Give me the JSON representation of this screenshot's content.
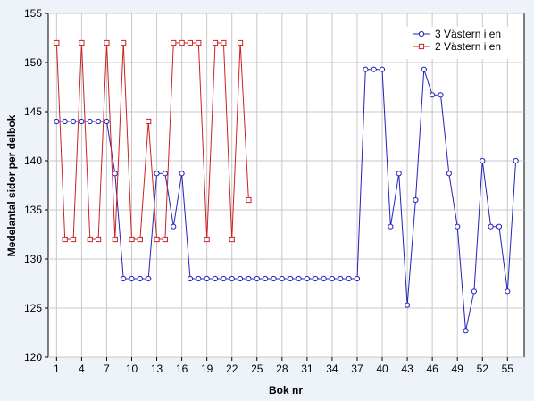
{
  "chart_data": {
    "type": "line",
    "xlabel": "Bok nr",
    "ylabel": "Medelantal sidor per delbok",
    "xlim": [
      0,
      57
    ],
    "ylim": [
      120,
      155
    ],
    "xticks": [
      1,
      4,
      7,
      10,
      13,
      16,
      19,
      22,
      25,
      28,
      31,
      34,
      37,
      40,
      43,
      46,
      49,
      52,
      55
    ],
    "yticks": [
      120,
      125,
      130,
      135,
      140,
      145,
      150,
      155
    ],
    "grid": true,
    "legend_position": "top-right",
    "series": [
      {
        "name": "3 Västern i en",
        "color": "#2222bb",
        "marker": "circle",
        "x": [
          1,
          2,
          3,
          4,
          5,
          6,
          7,
          8,
          9,
          10,
          11,
          12,
          13,
          14,
          15,
          16,
          17,
          18,
          19,
          20,
          21,
          22,
          23,
          24,
          25,
          26,
          27,
          28,
          29,
          30,
          31,
          32,
          33,
          34,
          35,
          36,
          37,
          38,
          39,
          40,
          41,
          42,
          43,
          44,
          45,
          46,
          47,
          48,
          49,
          50,
          51,
          52,
          53,
          54,
          55,
          56
        ],
        "y": [
          144,
          144,
          144,
          144,
          144,
          144,
          144,
          138.7,
          128,
          128,
          128,
          128,
          138.7,
          138.7,
          133.3,
          138.7,
          128,
          128,
          128,
          128,
          128,
          128,
          128,
          128,
          128,
          128,
          128,
          128,
          128,
          128,
          128,
          128,
          128,
          128,
          128,
          128,
          128,
          149.3,
          149.3,
          149.3,
          133.3,
          138.7,
          125.3,
          136,
          149.3,
          146.7,
          146.7,
          138.7,
          133.3,
          122.7,
          126.7,
          140,
          133.3,
          133.3,
          126.7,
          140
        ]
      },
      {
        "name": "2 Västern i en",
        "color": "#cc2222",
        "marker": "square",
        "x": [
          1,
          2,
          3,
          4,
          5,
          6,
          7,
          8,
          9,
          10,
          11,
          12,
          13,
          14,
          15,
          16,
          17,
          18,
          19,
          20,
          21,
          22,
          23,
          24
        ],
        "y": [
          152,
          132,
          132,
          152,
          132,
          132,
          152,
          132,
          152,
          132,
          132,
          144,
          132,
          132,
          152,
          152,
          152,
          152,
          132,
          152,
          152,
          132,
          152,
          136
        ]
      }
    ]
  }
}
